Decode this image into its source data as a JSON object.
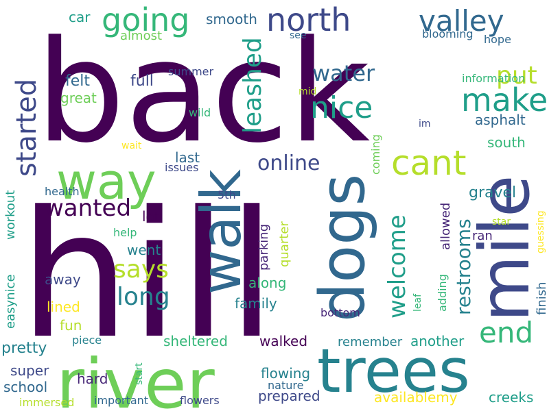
{
  "colors": {
    "background": "#ffffff",
    "palette": [
      "#440154",
      "#482878",
      "#3e4989",
      "#31688e",
      "#26828e",
      "#1f9e89",
      "#35b779",
      "#6ece58",
      "#b5de2b",
      "#fde725"
    ]
  },
  "words": [
    {
      "text": "back"
    },
    {
      "text": "hill"
    },
    {
      "text": "river"
    },
    {
      "text": "trees"
    },
    {
      "text": "mile"
    },
    {
      "text": "dogs"
    },
    {
      "text": "walk"
    },
    {
      "text": "way"
    },
    {
      "text": "going"
    },
    {
      "text": "north"
    },
    {
      "text": "valley"
    },
    {
      "text": "started"
    },
    {
      "text": "leashed"
    },
    {
      "text": "nice"
    },
    {
      "text": "make"
    },
    {
      "text": "cant"
    },
    {
      "text": "water"
    },
    {
      "text": "put"
    },
    {
      "text": "end"
    },
    {
      "text": "wanted"
    },
    {
      "text": "says"
    },
    {
      "text": "long"
    },
    {
      "text": "welcome"
    },
    {
      "text": "restrooms"
    },
    {
      "text": "online"
    },
    {
      "text": "car"
    },
    {
      "text": "smooth"
    },
    {
      "text": "almost"
    },
    {
      "text": "see"
    },
    {
      "text": "blooming"
    },
    {
      "text": "hope"
    },
    {
      "text": "felt"
    },
    {
      "text": "full"
    },
    {
      "text": "summer"
    },
    {
      "text": "great"
    },
    {
      "text": "wild"
    },
    {
      "text": "mid"
    },
    {
      "text": "information"
    },
    {
      "text": "asphalt"
    },
    {
      "text": "im"
    },
    {
      "text": "south"
    },
    {
      "text": "coming"
    },
    {
      "text": "wait"
    },
    {
      "text": "last"
    },
    {
      "text": "issues"
    },
    {
      "text": "health"
    },
    {
      "text": "5th"
    },
    {
      "text": "lot"
    },
    {
      "text": "help"
    },
    {
      "text": "went"
    },
    {
      "text": "workout"
    },
    {
      "text": "easynice"
    },
    {
      "text": "away"
    },
    {
      "text": "parking"
    },
    {
      "text": "quarter"
    },
    {
      "text": "along"
    },
    {
      "text": "allowed"
    },
    {
      "text": "ran"
    },
    {
      "text": "gravel"
    },
    {
      "text": "star"
    },
    {
      "text": "guessing"
    },
    {
      "text": "finish"
    },
    {
      "text": "adding"
    },
    {
      "text": "leaf"
    },
    {
      "text": "family"
    },
    {
      "text": "lined"
    },
    {
      "text": "fun"
    },
    {
      "text": "bottom"
    },
    {
      "text": "pretty"
    },
    {
      "text": "piece"
    },
    {
      "text": "sheltered"
    },
    {
      "text": "walked"
    },
    {
      "text": "remember"
    },
    {
      "text": "another"
    },
    {
      "text": "super"
    },
    {
      "text": "school"
    },
    {
      "text": "hard"
    },
    {
      "text": "start"
    },
    {
      "text": "flowing"
    },
    {
      "text": "nature"
    },
    {
      "text": "prepared"
    },
    {
      "text": "availablemy"
    },
    {
      "text": "creeks"
    },
    {
      "text": "immersed"
    },
    {
      "text": "important"
    },
    {
      "text": "flowers"
    }
  ]
}
